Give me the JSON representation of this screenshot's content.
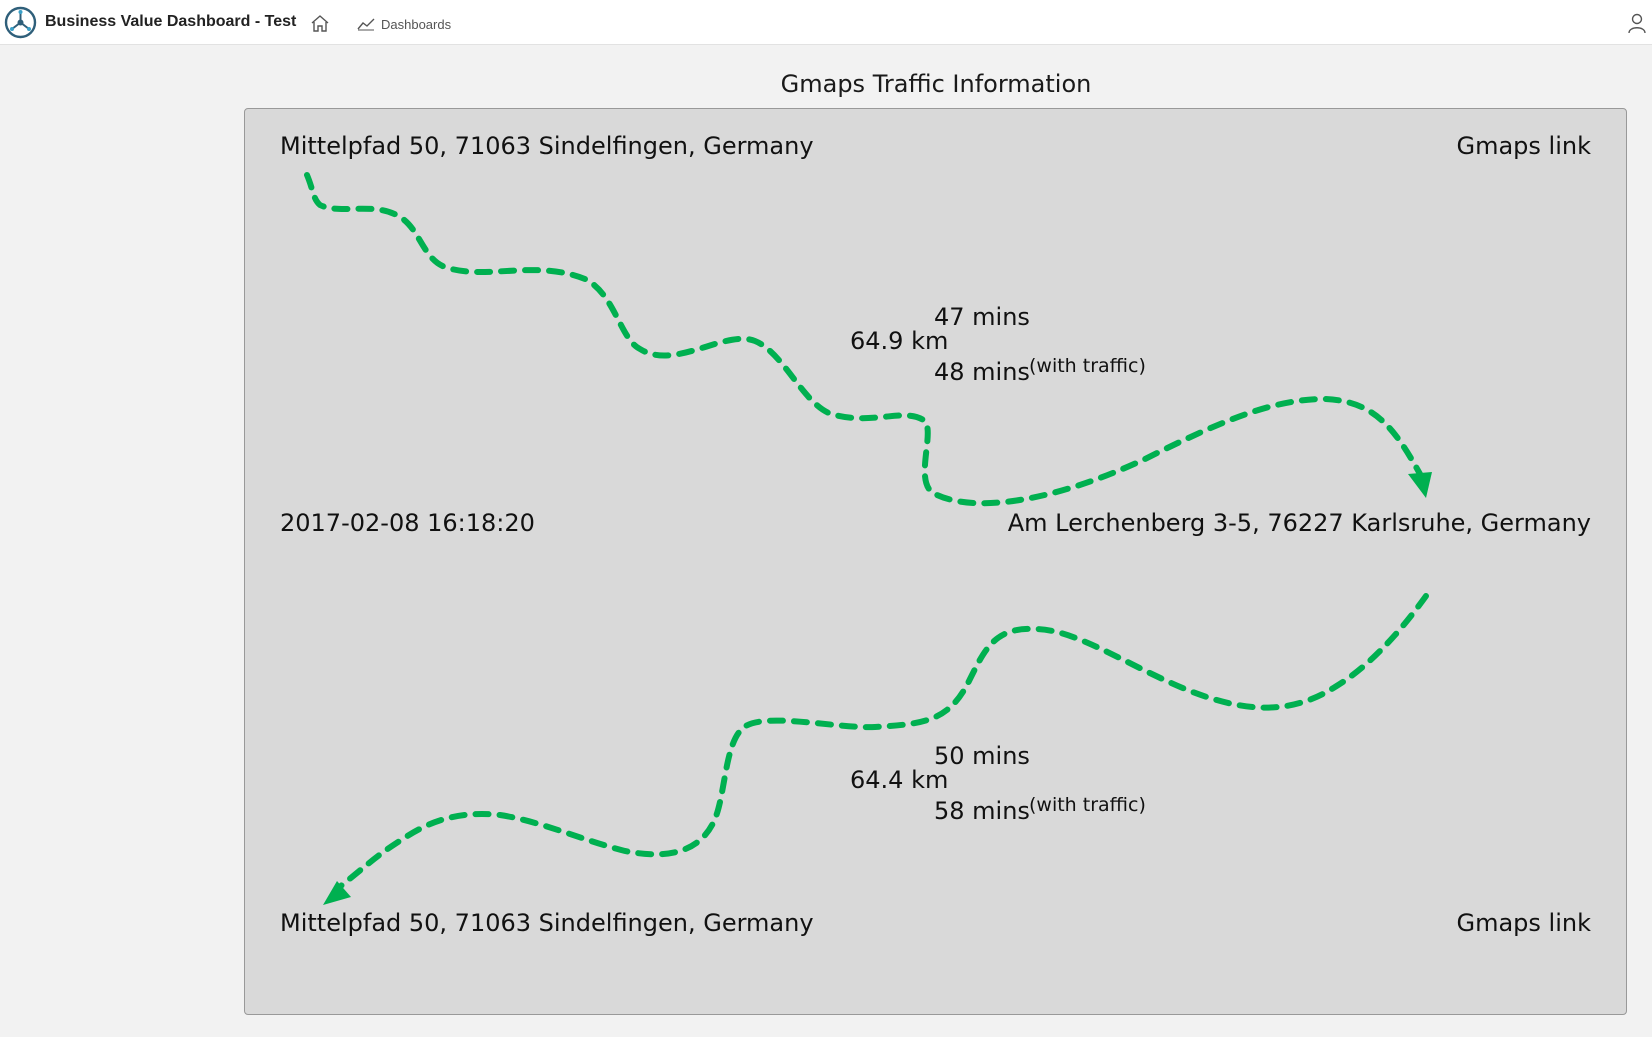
{
  "header": {
    "app_title": "Business Value Dashboard - Test",
    "home_icon": "home-icon",
    "dashboards_label": "Dashboards",
    "dashboards_icon": "line-chart-icon",
    "user_icon": "user-icon"
  },
  "widget": {
    "title": "Gmaps Traffic Information",
    "route_color": "#00b050",
    "outbound": {
      "origin": "Mittelpfad 50, 71063 Sindelfingen, Germany",
      "link_label": "Gmaps link",
      "distance": "64.9 km",
      "duration": "47 mins",
      "duration_traffic": "48 mins",
      "traffic_note": "(with traffic)"
    },
    "timestamp": "2017-02-08 16:18:20",
    "destination": "Am Lerchenberg 3-5, 76227 Karlsruhe, Germany",
    "return": {
      "distance": "64.4 km",
      "duration": "50 mins",
      "duration_traffic": "58 mins",
      "traffic_note": "(with traffic)",
      "origin": "Mittelpfad 50, 71063 Sindelfingen, Germany",
      "link_label": "Gmaps link"
    }
  }
}
